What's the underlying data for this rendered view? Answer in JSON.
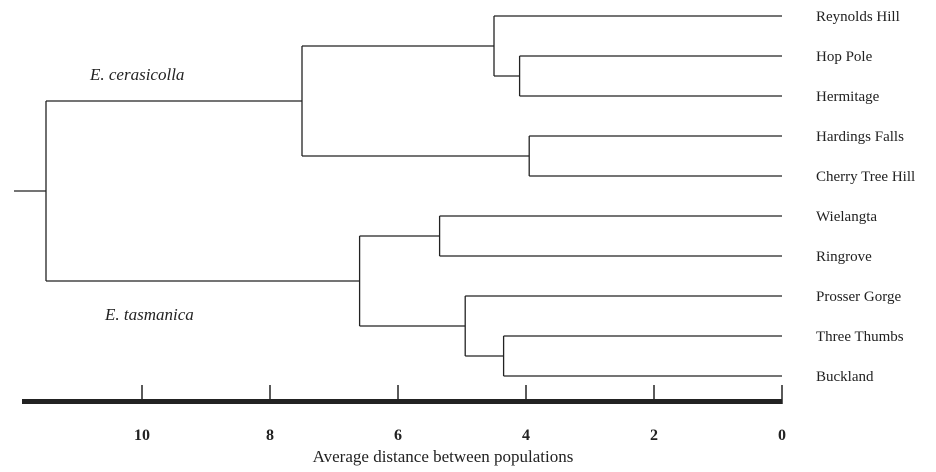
{
  "chart_data": {
    "type": "dendrogram",
    "xlabel": "Average distance between populations",
    "xlim": [
      11.5,
      0
    ],
    "ticks": [
      10,
      8,
      6,
      4,
      2,
      0
    ],
    "tick_labels": [
      "10",
      "8",
      "6",
      "4",
      "2",
      "0"
    ],
    "clade_labels": [
      "E. cerasicolla",
      "E. tasmanica"
    ],
    "leaves": [
      "Reynolds Hill",
      "Hop Pole",
      "Hermitage",
      "Hardings Falls",
      "Cherry Tree Hill",
      "Wielangta",
      "Ringrove",
      "Prosser Gorge",
      "Three Thumbs",
      "Buckland"
    ],
    "merges": [
      {
        "left": "Hop Pole",
        "right": "Hermitage",
        "height": 4.1
      },
      {
        "left": "Reynolds Hill",
        "right": "Hop Pole+Hermitage",
        "height": 4.5
      },
      {
        "left": "Hardings Falls",
        "right": "Cherry Tree Hill",
        "height": 3.95
      },
      {
        "left": "Reynolds Hill+Hop Pole+Hermitage",
        "right": "Hardings Falls+Cherry Tree Hill",
        "height": 7.5
      },
      {
        "left": "Wielangta",
        "right": "Ringrove",
        "height": 5.35
      },
      {
        "left": "Three Thumbs",
        "right": "Buckland",
        "height": 4.35
      },
      {
        "left": "Prosser Gorge",
        "right": "Three Thumbs+Buckland",
        "height": 4.95
      },
      {
        "left": "Wielangta+Ringrove",
        "right": "Prosser Gorge+Three Thumbs+Buckland",
        "height": 6.6
      },
      {
        "left": "E. cerasicolla",
        "right": "E. tasmanica",
        "height": 11.5
      }
    ]
  }
}
